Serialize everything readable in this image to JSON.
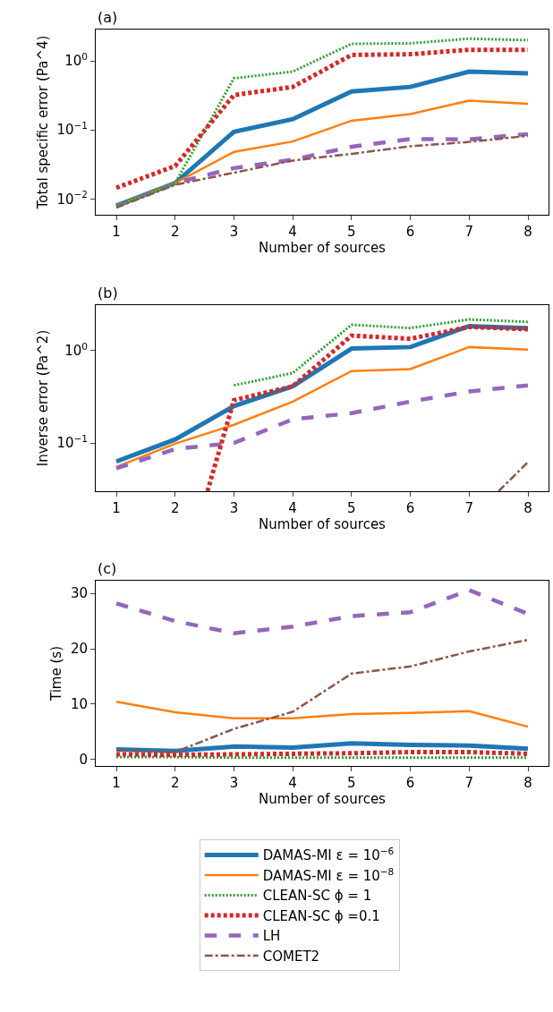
{
  "chart_data": [
    {
      "type": "line",
      "title": "(a)",
      "xlabel": "Number of sources",
      "ylabel": "Total specific error (Pa^4)",
      "log": true,
      "x": [
        1,
        2,
        3,
        4,
        5,
        6,
        7,
        8
      ],
      "xlim": [
        0.65,
        8.35
      ],
      "xticks": [
        1,
        2,
        3,
        4,
        5,
        6,
        7,
        8
      ],
      "ylim": [
        0.0059,
        2.85
      ],
      "yticks": [
        {
          "value": 0.01,
          "label": "10$^{−2}$"
        },
        {
          "value": 0.1,
          "label": "10$^{−1}$"
        },
        {
          "value": 1,
          "label": "10$^{0}$"
        }
      ],
      "legend": "bottom",
      "series": [
        {
          "name": "DAMAS-MI ε = 10$^{−6}$",
          "color": "#1f77b4",
          "line_style": "solid",
          "values": [
            0.008,
            0.017,
            0.094,
            0.143,
            0.36,
            0.42,
            0.7,
            0.66
          ]
        },
        {
          "name": "DAMAS-MI ε = 10$^{−8}$",
          "color": "#ff7f0e",
          "line_style": "solid",
          "values": [
            0.008,
            0.017,
            0.048,
            0.068,
            0.136,
            0.17,
            0.266,
            0.24
          ]
        },
        {
          "name": "CLEAN-SC ϕ = 1",
          "color": "#2ca02c",
          "line_style": "dotted",
          "values": [
            0.008,
            0.017,
            0.56,
            0.7,
            1.77,
            1.8,
            2.1,
            2.0
          ]
        },
        {
          "name": "CLEAN-SC ϕ =0.1",
          "color": "#d62728",
          "line_style": "dotted",
          "values": [
            0.0145,
            0.03,
            0.32,
            0.42,
            1.22,
            1.25,
            1.45,
            1.45
          ]
        },
        {
          "name": "LH",
          "color": "#9467bd",
          "line_style": "dashed",
          "values": [
            0.0078,
            0.017,
            0.028,
            0.037,
            0.057,
            0.074,
            0.073,
            0.087
          ]
        },
        {
          "name": "COMET2",
          "color": "#8c564b",
          "line_style": "dashdot",
          "values": [
            0.0075,
            0.016,
            0.024,
            0.036,
            0.045,
            0.058,
            0.067,
            0.082
          ]
        }
      ]
    },
    {
      "type": "line",
      "title": "(b)",
      "xlabel": "Number of sources",
      "ylabel": "Inverse error (Pa^2)",
      "log": true,
      "x": [
        1,
        2,
        3,
        4,
        5,
        6,
        7,
        8
      ],
      "xlim": [
        0.65,
        8.35
      ],
      "xticks": [
        1,
        2,
        3,
        4,
        5,
        6,
        7,
        8
      ],
      "ylim": [
        0.03,
        3.1
      ],
      "yticks": [
        {
          "value": 0.1,
          "label": "10$^{−1}$"
        },
        {
          "value": 1,
          "label": "10$^{0}$"
        }
      ],
      "series": [
        {
          "color": "#1f77b4",
          "line_style": "solid",
          "values": [
            0.063,
            0.109,
            0.25,
            0.41,
            1.05,
            1.09,
            1.84,
            1.75
          ]
        },
        {
          "color": "#ff7f0e",
          "line_style": "solid",
          "values": [
            0.055,
            0.098,
            0.157,
            0.28,
            0.6,
            0.63,
            1.09,
            1.02
          ]
        },
        {
          "color": "#2ca02c",
          "line_style": "dotted",
          "values": [
            null,
            null,
            0.42,
            0.57,
            1.9,
            1.75,
            2.17,
            2.04
          ]
        },
        {
          "color": "#d62728",
          "line_style": "dotted",
          "x": [
            2.55,
            3,
            4,
            5,
            6,
            7,
            8
          ],
          "values": [
            0.03,
            0.29,
            0.41,
            1.45,
            1.34,
            1.8,
            1.7
          ]
        },
        {
          "color": "#9467bd",
          "line_style": "dashed",
          "values": [
            0.053,
            0.086,
            0.1,
            0.18,
            0.21,
            0.28,
            0.36,
            0.42
          ]
        },
        {
          "color": "#8c564b",
          "line_style": "dashdot",
          "x": [
            7.5,
            8
          ],
          "values": [
            0.03,
            0.062
          ]
        }
      ]
    },
    {
      "type": "line",
      "title": "(c)",
      "xlabel": "Number of sources",
      "ylabel": "Time (s)",
      "x": [
        1,
        2,
        3,
        4,
        5,
        6,
        7,
        8
      ],
      "xlim": [
        0.65,
        8.35
      ],
      "xticks": [
        1,
        2,
        3,
        4,
        5,
        6,
        7,
        8
      ],
      "ylim": [
        -1.2,
        32.3
      ],
      "yticks": [
        0,
        10,
        20,
        30
      ],
      "series": [
        {
          "color": "#1f77b4",
          "line_style": "solid",
          "values": [
            1.8,
            1.5,
            2.3,
            2.1,
            2.9,
            2.6,
            2.5,
            1.9
          ]
        },
        {
          "color": "#ff7f0e",
          "line_style": "solid",
          "values": [
            10.4,
            8.5,
            7.4,
            7.4,
            8.2,
            8.4,
            8.7,
            5.9
          ]
        },
        {
          "color": "#2ca02c",
          "line_style": "dotted",
          "values": [
            0.4,
            0.4,
            0.3,
            0.3,
            0.3,
            0.3,
            0.3,
            0.3
          ]
        },
        {
          "color": "#d62728",
          "line_style": "dotted",
          "values": [
            0.9,
            0.8,
            0.9,
            1.0,
            1.1,
            1.3,
            1.3,
            1.0
          ]
        },
        {
          "color": "#9467bd",
          "line_style": "dashed",
          "values": [
            28.2,
            25.0,
            22.8,
            24.0,
            25.9,
            26.6,
            30.6,
            26.3
          ]
        },
        {
          "color": "#8c564b",
          "line_style": "dashdot",
          "values": [
            1.6,
            1.3,
            5.5,
            8.6,
            15.5,
            16.8,
            19.5,
            21.6
          ]
        }
      ]
    }
  ]
}
